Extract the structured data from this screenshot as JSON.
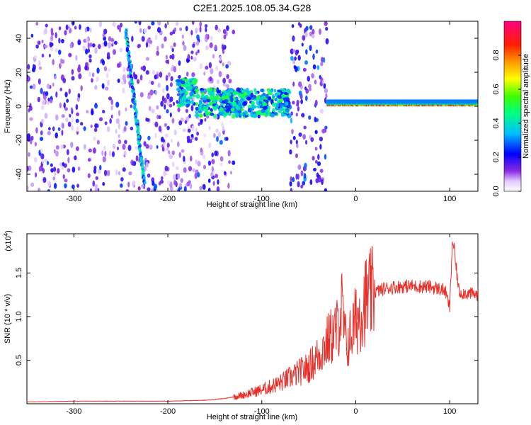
{
  "title": "C2E1.2025.108.05.34.G28",
  "chart_data": [
    {
      "type": "heatmap",
      "xlabel": "Height of straight line (km)",
      "ylabel": "Frequency (Hz)",
      "xlim": [
        -350,
        130
      ],
      "ylim": [
        -50,
        50
      ],
      "xticks": [
        -300,
        -200,
        -100,
        0,
        100
      ],
      "yticks": [
        -40,
        -20,
        0,
        20,
        40
      ],
      "colorbar": {
        "label": "Normalized spectral amplitude",
        "range": [
          0,
          1
        ],
        "ticks": [
          0.0,
          0.2,
          0.4,
          0.6,
          0.8
        ],
        "colormap": [
          "#ffffff",
          "#c9a8f0",
          "#6a00e8",
          "#0000ff",
          "#00e0ff",
          "#00ff00",
          "#ffff00",
          "#ff8000",
          "#ff0000",
          "#ff0080"
        ]
      },
      "regions": [
        {
          "x": [
            -350,
            -130
          ],
          "amplitude_range": [
            0.05,
            0.25
          ],
          "pattern": "broadband noise"
        },
        {
          "x": [
            -70,
            -30
          ],
          "amplitude_range": [
            0.1,
            0.3
          ],
          "pattern": "broadband noise"
        },
        {
          "x": [
            -190,
            -70
          ],
          "freq_range": [
            -8,
            12
          ],
          "amplitude_range": [
            0.2,
            0.55
          ],
          "pattern": "narrowband signal"
        },
        {
          "x": [
            -30,
            130
          ],
          "freq_range": [
            -2,
            3
          ],
          "amplitude_range": [
            0.6,
            0.95
          ],
          "pattern": "carrier line"
        },
        {
          "x": [
            -245,
            -225
          ],
          "freq": [
            45,
            -45
          ],
          "pattern": "diagonal streak"
        }
      ]
    },
    {
      "type": "line",
      "xlabel": "Height of straight line (km)",
      "ylabel": "SNR (10 * v/v)",
      "yscale_label": "(x10",
      "yscale_exp": "4",
      "xlim": [
        -350,
        130
      ],
      "ylim": [
        0,
        1.95
      ],
      "xticks": [
        -300,
        -200,
        -100,
        0,
        100
      ],
      "yticks": [
        0.5,
        1.0,
        1.5
      ],
      "color": "#e8302a",
      "x": [
        -350,
        -300,
        -250,
        -200,
        -160,
        -140,
        -120,
        -100,
        -80,
        -60,
        -50,
        -40,
        -30,
        -20,
        -15,
        -10,
        0,
        10,
        20,
        30,
        40,
        60,
        80,
        95,
        100,
        103,
        110,
        130
      ],
      "y": [
        0.02,
        0.03,
        0.03,
        0.03,
        0.04,
        0.06,
        0.1,
        0.16,
        0.24,
        0.36,
        0.42,
        0.55,
        0.72,
        0.85,
        1.1,
        0.65,
        0.95,
        1.18,
        1.28,
        1.32,
        1.34,
        1.35,
        1.34,
        1.3,
        1.1,
        1.9,
        1.28,
        1.25
      ]
    }
  ]
}
